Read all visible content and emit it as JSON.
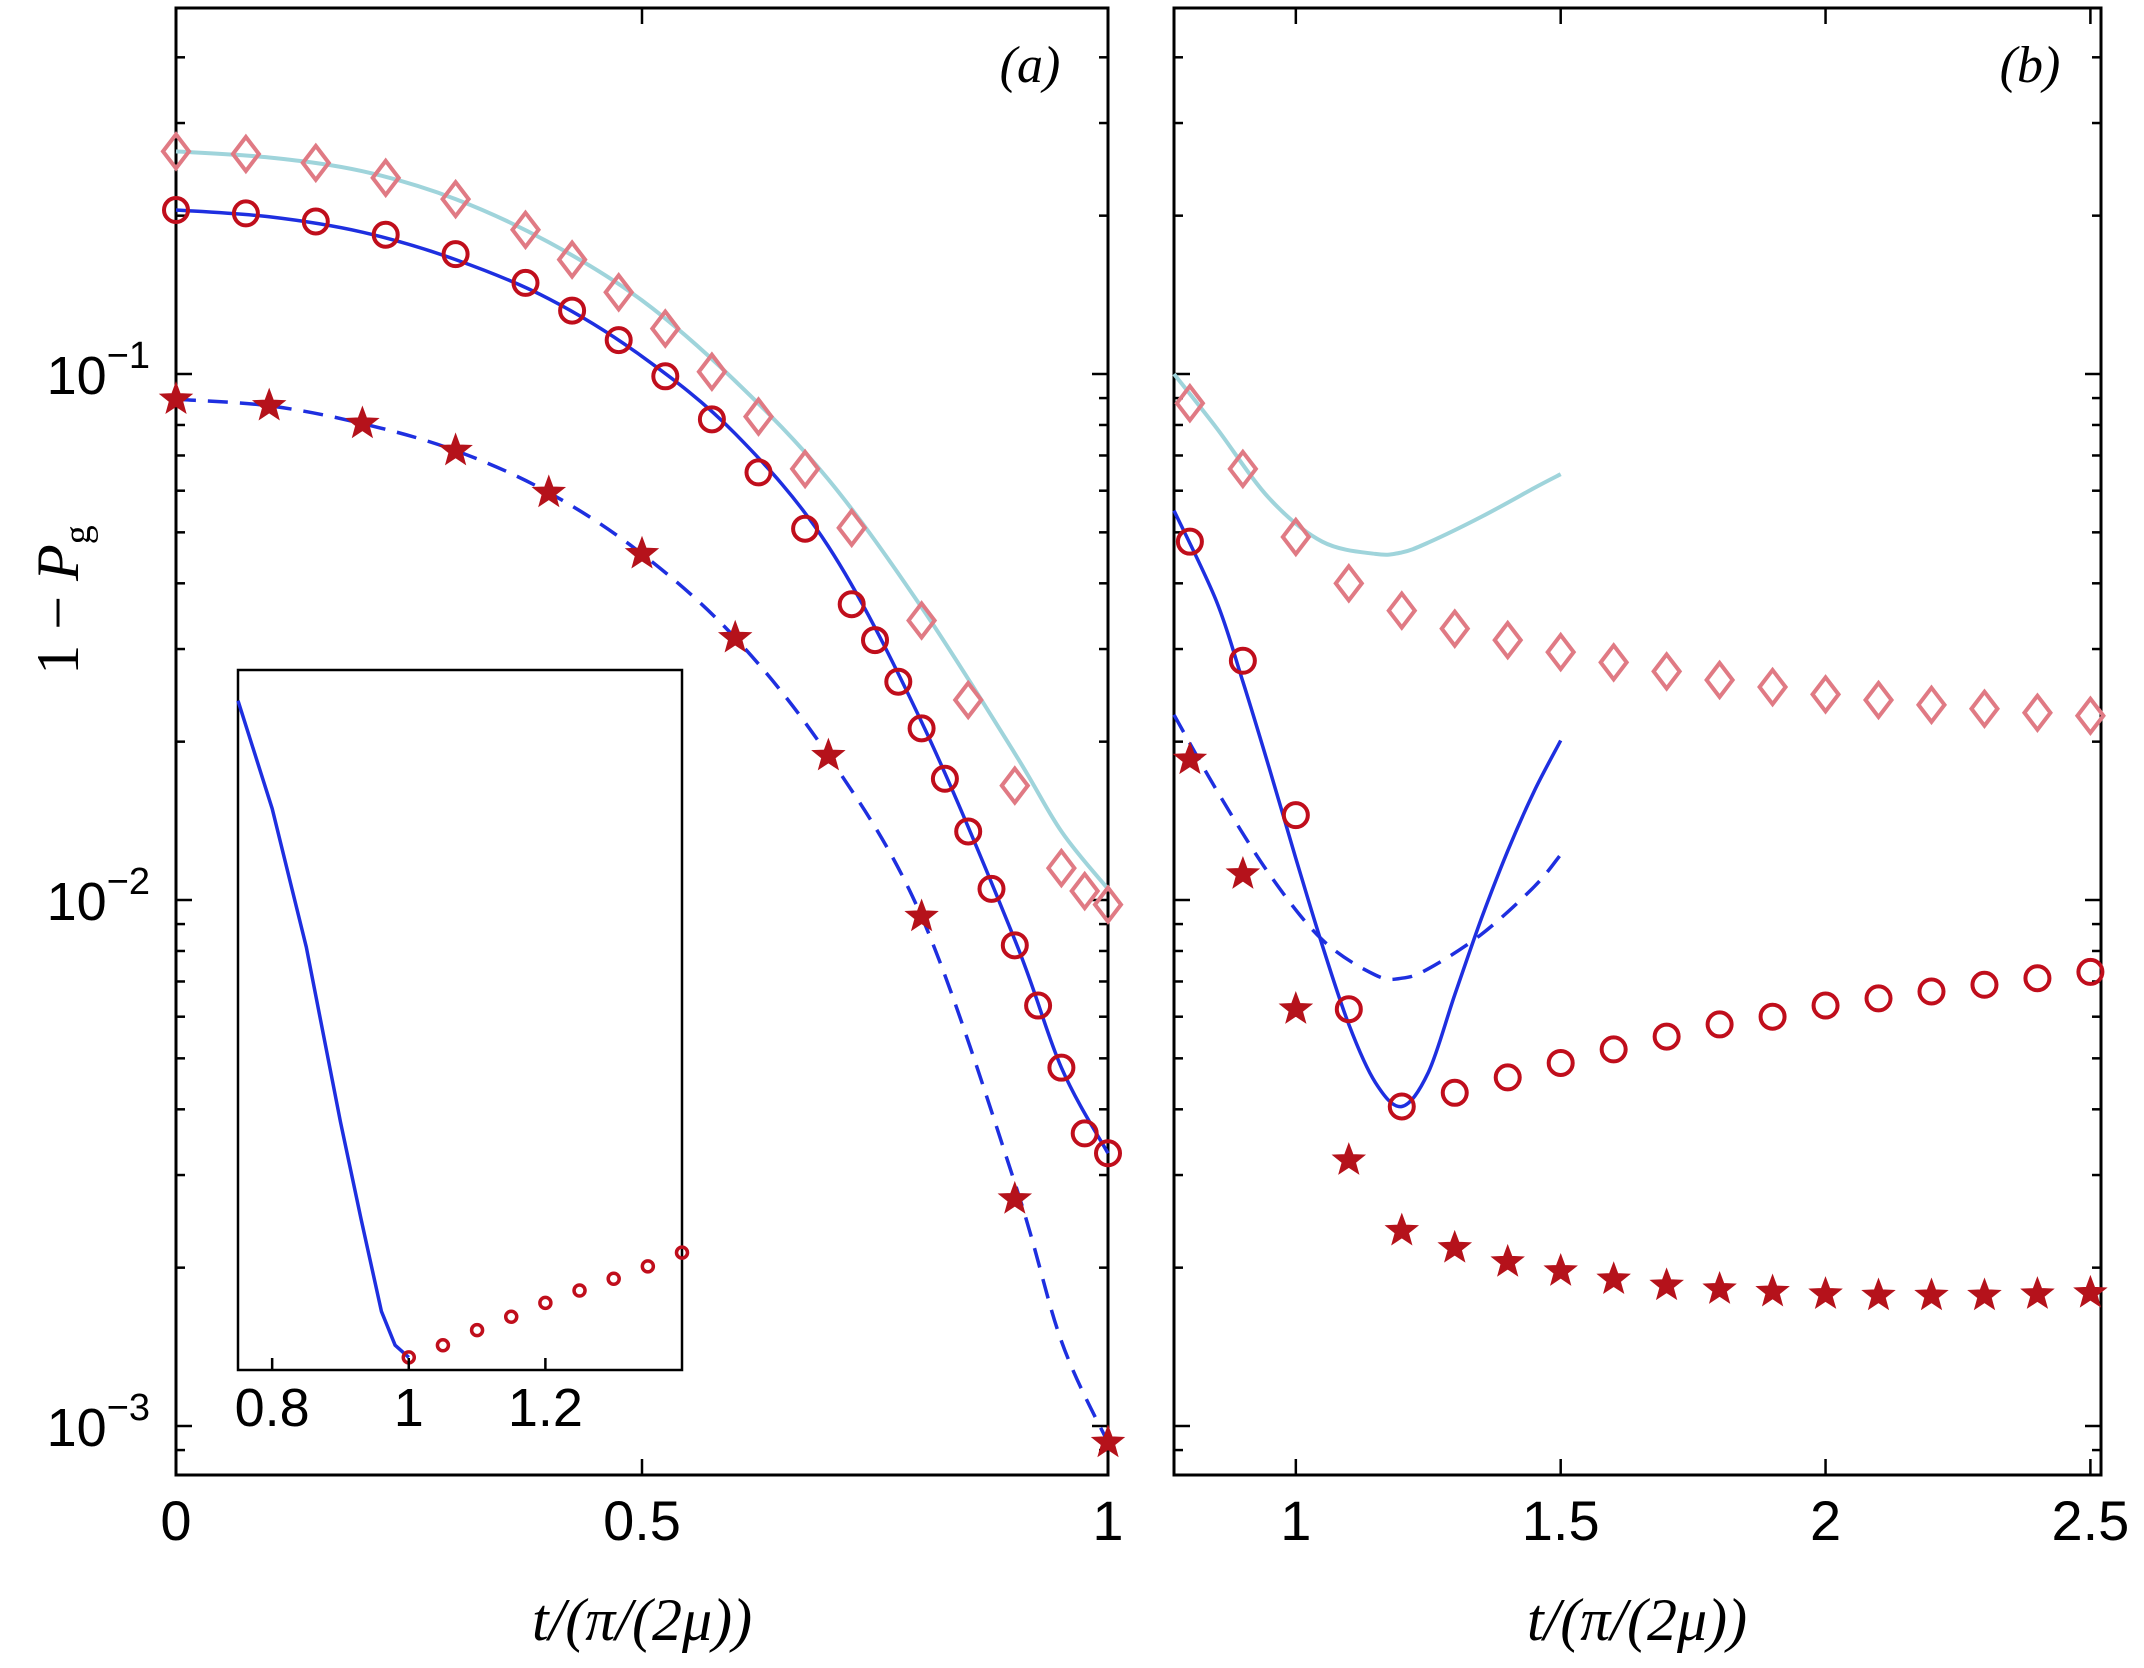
{
  "y_axis_label": {
    "lead": "1 − ",
    "var": "P",
    "sub": "g"
  },
  "y_tick_labels": [
    {
      "value": 0.1,
      "base": "10",
      "exp": "−1"
    },
    {
      "value": 0.01,
      "base": "10",
      "exp": "−2"
    },
    {
      "value": 0.001,
      "base": "10",
      "exp": "−3"
    }
  ],
  "colors": {
    "diamond": "#E07A84",
    "circle": "#C00E1C",
    "star": "#B5121B",
    "light_line": "#9FD4DB",
    "blue_line": "#1E2FE0"
  },
  "chart_data": [
    {
      "panel": "a",
      "type": "line",
      "panel_label": "(a)",
      "xlabel": "t/(π/(2μ))",
      "xlim": [
        0,
        1
      ],
      "ylim": [
        0.0008,
        0.4
      ],
      "yscale": "log",
      "x_ticks": [
        0,
        0.5,
        1
      ],
      "x_tick_labels": [
        "0",
        "0.5",
        "1"
      ],
      "series": [
        {
          "name": "diamonds",
          "marker": "diamond",
          "x": [
            0,
            0.075,
            0.15,
            0.225,
            0.3,
            0.375,
            0.425,
            0.475,
            0.525,
            0.575,
            0.625,
            0.675,
            0.725,
            0.8,
            0.85,
            0.9,
            0.95,
            0.975,
            1.0
          ],
          "y": [
            0.265,
            0.262,
            0.252,
            0.236,
            0.215,
            0.188,
            0.165,
            0.143,
            0.122,
            0.101,
            0.083,
            0.066,
            0.051,
            0.034,
            0.024,
            0.0165,
            0.0115,
            0.0104,
            0.0098
          ]
        },
        {
          "name": "circles",
          "marker": "circle",
          "x": [
            0,
            0.075,
            0.15,
            0.225,
            0.3,
            0.375,
            0.425,
            0.475,
            0.525,
            0.575,
            0.625,
            0.675,
            0.725,
            0.75,
            0.775,
            0.8,
            0.825,
            0.85,
            0.875,
            0.9,
            0.925,
            0.95,
            0.975,
            1.0
          ],
          "y": [
            0.205,
            0.202,
            0.195,
            0.184,
            0.169,
            0.149,
            0.132,
            0.116,
            0.099,
            0.082,
            0.065,
            0.0508,
            0.0365,
            0.0312,
            0.026,
            0.0212,
            0.017,
            0.0135,
            0.0105,
            0.0082,
            0.0063,
            0.0048,
            0.0036,
            0.0033
          ]
        },
        {
          "name": "stars",
          "marker": "star",
          "x": [
            0,
            0.1,
            0.2,
            0.3,
            0.4,
            0.5,
            0.6,
            0.7,
            0.8,
            0.9,
            1.0
          ],
          "y": [
            0.0895,
            0.087,
            0.0805,
            0.0715,
            0.0595,
            0.0455,
            0.0315,
            0.0188,
            0.0093,
            0.0027,
            0.00093
          ]
        },
        {
          "name": "light solid line",
          "style": "solid",
          "color": "light_line",
          "x": [
            0,
            0.1,
            0.2,
            0.3,
            0.4,
            0.5,
            0.6,
            0.7,
            0.8,
            0.9,
            0.95,
            1.0
          ],
          "y": [
            0.265,
            0.258,
            0.243,
            0.215,
            0.178,
            0.138,
            0.097,
            0.063,
            0.036,
            0.019,
            0.0135,
            0.0105
          ]
        },
        {
          "name": "blue solid line",
          "style": "solid",
          "color": "blue_line",
          "x": [
            0,
            0.1,
            0.2,
            0.3,
            0.4,
            0.5,
            0.6,
            0.7,
            0.8,
            0.9,
            0.95,
            1.0
          ],
          "y": [
            0.205,
            0.199,
            0.186,
            0.165,
            0.139,
            0.108,
            0.077,
            0.047,
            0.0218,
            0.0084,
            0.0048,
            0.0033
          ]
        },
        {
          "name": "blue dashed line",
          "style": "dashed",
          "color": "blue_line",
          "x": [
            0,
            0.1,
            0.2,
            0.3,
            0.4,
            0.5,
            0.6,
            0.7,
            0.8,
            0.9,
            0.95,
            1.0
          ],
          "y": [
            0.0895,
            0.087,
            0.0805,
            0.0715,
            0.0595,
            0.0455,
            0.0315,
            0.0188,
            0.0093,
            0.0029,
            0.00145,
            0.00093
          ]
        }
      ]
    },
    {
      "panel": "b",
      "type": "line",
      "panel_label": "(b)",
      "xlabel": "t/(π/(2μ))",
      "xlim": [
        0.77,
        2.52
      ],
      "ylim": [
        0.0008,
        0.4
      ],
      "yscale": "log",
      "x_ticks": [
        1,
        1.5,
        2,
        2.5
      ],
      "x_tick_labels": [
        "1",
        "1.5",
        "2",
        "2.5"
      ],
      "series": [
        {
          "name": "diamonds",
          "marker": "diamond",
          "x": [
            0.8,
            0.9,
            1.0,
            1.1,
            1.2,
            1.3,
            1.4,
            1.5,
            1.6,
            1.7,
            1.8,
            1.9,
            2.0,
            2.1,
            2.2,
            2.3,
            2.4,
            2.5
          ],
          "y": [
            0.088,
            0.066,
            0.049,
            0.04,
            0.0355,
            0.0328,
            0.0312,
            0.0296,
            0.0283,
            0.0272,
            0.0262,
            0.0254,
            0.0246,
            0.024,
            0.0235,
            0.0231,
            0.0227,
            0.0224
          ]
        },
        {
          "name": "circles",
          "marker": "circle",
          "x": [
            0.8,
            0.9,
            1.0,
            1.1,
            1.2,
            1.3,
            1.4,
            1.5,
            1.6,
            1.7,
            1.8,
            1.9,
            2.0,
            2.1,
            2.2,
            2.3,
            2.4,
            2.5
          ],
          "y": [
            0.048,
            0.0285,
            0.0145,
            0.0062,
            0.00405,
            0.0043,
            0.0046,
            0.0049,
            0.0052,
            0.0055,
            0.0058,
            0.006,
            0.0063,
            0.0065,
            0.0067,
            0.0069,
            0.0071,
            0.0073
          ]
        },
        {
          "name": "stars",
          "marker": "star",
          "x": [
            0.8,
            0.9,
            1.0,
            1.1,
            1.2,
            1.3,
            1.4,
            1.5,
            1.6,
            1.7,
            1.8,
            1.9,
            2.0,
            2.1,
            2.2,
            2.3,
            2.4,
            2.5
          ],
          "y": [
            0.0185,
            0.0112,
            0.0062,
            0.0032,
            0.00235,
            0.00218,
            0.00205,
            0.00197,
            0.0019,
            0.00185,
            0.00182,
            0.0018,
            0.00178,
            0.00177,
            0.00177,
            0.00177,
            0.00178,
            0.00179
          ]
        },
        {
          "name": "light solid line",
          "style": "solid",
          "color": "light_line",
          "x": [
            0.77,
            0.85,
            0.95,
            1.05,
            1.15,
            1.2,
            1.25,
            1.35,
            1.45,
            1.5
          ],
          "y": [
            0.1,
            0.079,
            0.058,
            0.048,
            0.0455,
            0.0458,
            0.0478,
            0.0535,
            0.0607,
            0.0645
          ]
        },
        {
          "name": "blue solid line",
          "style": "solid",
          "color": "blue_line",
          "x": [
            0.77,
            0.85,
            0.9,
            0.95,
            1.0,
            1.05,
            1.1,
            1.15,
            1.2,
            1.25,
            1.3,
            1.35,
            1.4,
            1.45,
            1.5
          ],
          "y": [
            0.055,
            0.037,
            0.026,
            0.0178,
            0.012,
            0.0082,
            0.0058,
            0.0045,
            0.00405,
            0.0047,
            0.0066,
            0.0092,
            0.0124,
            0.0161,
            0.0201
          ]
        },
        {
          "name": "blue dashed line",
          "style": "dashed",
          "color": "blue_line",
          "x": [
            0.77,
            0.85,
            0.95,
            1.05,
            1.15,
            1.2,
            1.25,
            1.35,
            1.45,
            1.5
          ],
          "y": [
            0.0225,
            0.0162,
            0.0112,
            0.0084,
            0.0072,
            0.0071,
            0.0074,
            0.0086,
            0.0106,
            0.0122
          ]
        }
      ]
    },
    {
      "panel": "inset",
      "type": "line",
      "xlim": [
        0.75,
        1.4
      ],
      "yscale": "log",
      "ylim": [
        0.0025,
        0.022
      ],
      "x_ticks": [
        0.8,
        1,
        1.2
      ],
      "x_tick_labels": [
        "0.8",
        "1",
        "1.2"
      ],
      "series": [
        {
          "name": "blue solid line",
          "style": "solid",
          "color": "blue_line",
          "x": [
            0.75,
            0.8,
            0.85,
            0.9,
            0.93,
            0.96,
            0.98,
            1.0
          ],
          "y": [
            0.02,
            0.0143,
            0.0093,
            0.0054,
            0.004,
            0.003,
            0.0027,
            0.0026
          ]
        },
        {
          "name": "circles",
          "marker": "small-circle",
          "x": [
            1.0,
            1.05,
            1.1,
            1.15,
            1.2,
            1.25,
            1.3,
            1.35,
            1.4
          ],
          "y": [
            0.0026,
            0.0027,
            0.00283,
            0.00295,
            0.00308,
            0.0032,
            0.00332,
            0.00345,
            0.0036
          ]
        }
      ]
    }
  ]
}
